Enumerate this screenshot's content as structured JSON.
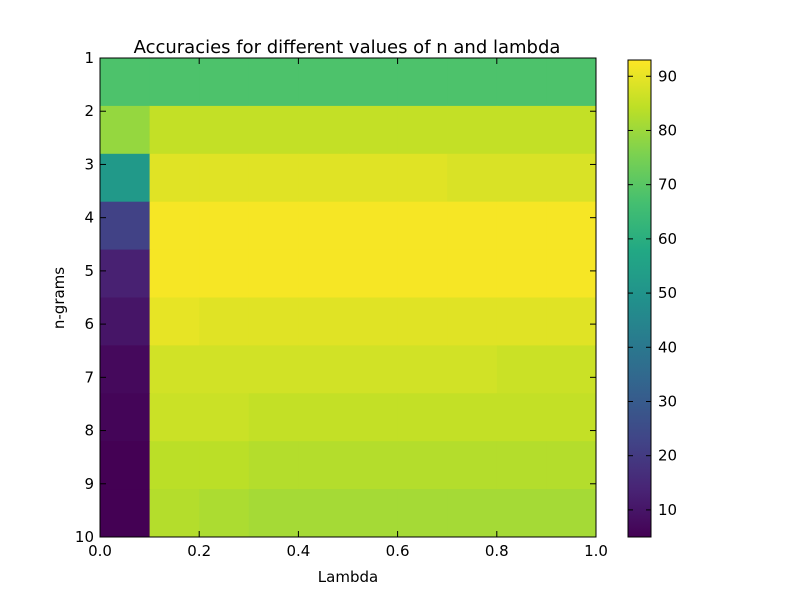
{
  "chart_data": {
    "type": "heatmap",
    "title": "Accuracies for different values of n and lambda",
    "xlabel": "Lambda",
    "ylabel": "n-grams",
    "xlim": [
      0.0,
      1.0
    ],
    "x_ticks": [
      "0.0",
      "0.2",
      "0.4",
      "0.6",
      "0.8",
      "1.0"
    ],
    "y_ticks": [
      "1",
      "2",
      "3",
      "4",
      "5",
      "6",
      "7",
      "8",
      "9",
      "10"
    ],
    "colormap": "viridis",
    "colorbar_range": [
      5,
      93
    ],
    "colorbar_ticks": [
      "10",
      "20",
      "30",
      "40",
      "50",
      "60",
      "70",
      "80",
      "90"
    ],
    "x_bins": [
      0.0,
      0.1,
      0.2,
      0.3,
      0.4,
      0.5,
      0.6,
      0.7,
      0.8,
      0.9,
      1.0
    ],
    "rows": [
      {
        "n": "1",
        "values": [
          68,
          68,
          68,
          68,
          68,
          68,
          68,
          68,
          68,
          68
        ]
      },
      {
        "n": "2",
        "values": [
          79,
          85,
          85,
          85,
          85,
          85,
          85,
          85,
          85,
          85
        ]
      },
      {
        "n": "3",
        "values": [
          52,
          89,
          89,
          89,
          89,
          89,
          89,
          88,
          88,
          88
        ]
      },
      {
        "n": "4",
        "values": [
          22,
          92,
          92,
          92,
          92,
          92,
          92,
          92,
          92,
          92
        ]
      },
      {
        "n": "5",
        "values": [
          13,
          92,
          92,
          92,
          92,
          92,
          92,
          92,
          92,
          92
        ]
      },
      {
        "n": "6",
        "values": [
          10,
          90,
          89,
          89,
          89,
          89,
          89,
          89,
          89,
          89
        ]
      },
      {
        "n": "7",
        "values": [
          7,
          87,
          87,
          87,
          87,
          87,
          87,
          87,
          86,
          86
        ]
      },
      {
        "n": "8",
        "values": [
          6,
          86,
          86,
          85,
          85,
          85,
          85,
          85,
          85,
          85
        ]
      },
      {
        "n": "9",
        "values": [
          5,
          84,
          84,
          83,
          83,
          83,
          83,
          83,
          83,
          83
        ]
      },
      {
        "n": "10",
        "values": [
          5,
          83,
          82,
          81,
          81,
          81,
          81,
          81,
          81,
          81
        ]
      }
    ]
  }
}
